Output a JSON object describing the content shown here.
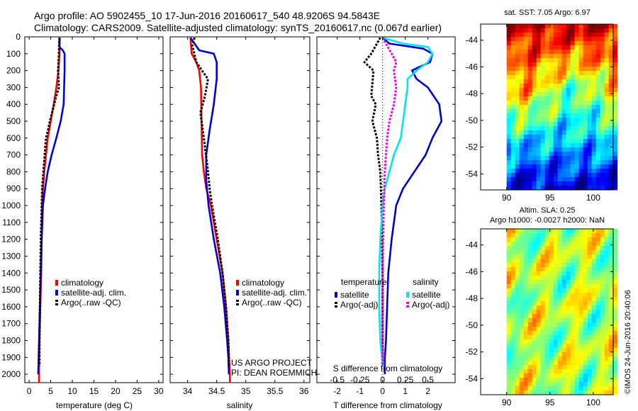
{
  "header": {
    "line1": "Argo profile: AO 5902455_10 17-Jun-2016 20160617_540 48.9206S 94.5843E",
    "line2": "Climatology: CARS2009. Satellite-adjusted climatology: synTS_20160617.nc (0.067d earlier)"
  },
  "sst_title": "sat. SST: 7.05 Argo: 6.97",
  "sla_title_1": "Altim. SLA: 0.25",
  "sla_title_2": "Argo h1000: -0.0027 h2000: NaN",
  "credit": "©IMOS 24-Jun-2016 20:40:06",
  "project_line1": "US ARGO PROJECT",
  "project_line2": "PI: DEAN ROEMMICH",
  "colors": {
    "climatology": "#ff0000",
    "satellite": "#0000dd",
    "argo": "#000000",
    "t_satellite": "#0000cc",
    "s_satellite": "#00e5ee",
    "s_argo": "#ee00ee"
  },
  "depth_ticks": [
    0,
    100,
    200,
    300,
    400,
    500,
    600,
    700,
    800,
    900,
    1000,
    1100,
    1200,
    1300,
    1400,
    1500,
    1600,
    1700,
    1800,
    1900,
    2000
  ],
  "chart_data": [
    {
      "type": "line",
      "id": "temperature",
      "xlabel": "temperature (deg C)",
      "ylabel": "",
      "xlim": [
        -1,
        31
      ],
      "ylim": [
        2050,
        0
      ],
      "xticks": [
        0,
        5,
        10,
        15,
        20,
        25,
        30
      ],
      "legend": [
        "climatology",
        "satellite-adj. clim.",
        "Argo(..raw -QC)"
      ],
      "legend_placement": "lower-center",
      "series": [
        {
          "name": "climatology",
          "color": "#ff0000",
          "style": "solid",
          "x": [
            7.1,
            7.0,
            6.8,
            6.3,
            5.7,
            5.0,
            4.3,
            3.9,
            3.5,
            3.2,
            3.0,
            2.9,
            2.8,
            2.7,
            2.6,
            2.5,
            2.4,
            2.3,
            2.3
          ],
          "y": [
            5,
            100,
            200,
            300,
            400,
            500,
            600,
            700,
            800,
            900,
            1000,
            1200,
            1400,
            1500,
            1600,
            1700,
            1800,
            1900,
            2050
          ]
        },
        {
          "name": "satellite-adj. clim.",
          "color": "#0000dd",
          "style": "solid",
          "x": [
            7.0,
            7.0,
            7.8,
            8.2,
            8.2,
            8.0,
            7.3,
            6.3,
            5.2,
            4.3,
            3.7,
            3.2,
            2.9,
            2.7,
            2.5,
            2.3,
            2.2,
            2.1
          ],
          "y": [
            5,
            60,
            80,
            100,
            200,
            400,
            500,
            600,
            700,
            800,
            900,
            1000,
            1200,
            1400,
            1600,
            1800,
            1900,
            2000
          ]
        },
        {
          "name": "Argo(..raw -QC)",
          "color": "#000000",
          "style": "dashed",
          "x": [
            7.0,
            6.9,
            6.7,
            6.9,
            6.3,
            5.8,
            5.3,
            4.8,
            4.4,
            3.9,
            3.6,
            3.3,
            3.0,
            2.9,
            2.7,
            2.6,
            2.5,
            2.4,
            2.4
          ],
          "y": [
            5,
            100,
            200,
            300,
            350,
            400,
            450,
            500,
            550,
            600,
            700,
            800,
            900,
            1000,
            1200,
            1400,
            1600,
            1800,
            1950
          ]
        }
      ]
    },
    {
      "type": "line",
      "id": "salinity",
      "xlabel": "salinity",
      "ylabel": "",
      "xlim": [
        33.7,
        36.1
      ],
      "ylim": [
        2050,
        0
      ],
      "xticks": [
        34,
        34.5,
        35,
        35.5,
        36
      ],
      "legend": [
        "climatology",
        "satellite-adj. clim.",
        "Argo(..raw -QC)"
      ],
      "legend_placement": "lower-center",
      "series": [
        {
          "name": "climatology",
          "color": "#ff0000",
          "style": "solid",
          "x": [
            34.05,
            34.07,
            34.15,
            34.2,
            34.23,
            34.24,
            34.25,
            34.28,
            34.32,
            34.4,
            34.5,
            34.6,
            34.66,
            34.7,
            34.72,
            34.73
          ],
          "y": [
            5,
            100,
            150,
            200,
            300,
            500,
            700,
            800,
            900,
            1000,
            1200,
            1400,
            1600,
            1800,
            1950,
            2050
          ]
        },
        {
          "name": "satellite-adj. clim.",
          "color": "#0000dd",
          "style": "solid",
          "x": [
            34.05,
            34.2,
            34.45,
            34.5,
            34.5,
            34.45,
            34.38,
            34.32,
            34.32,
            34.36,
            34.45,
            34.56,
            34.63,
            34.68,
            34.7,
            34.71
          ],
          "y": [
            5,
            80,
            100,
            150,
            250,
            400,
            550,
            700,
            850,
            1000,
            1200,
            1400,
            1600,
            1800,
            1900,
            2000
          ]
        },
        {
          "name": "Argo(..raw -QC)",
          "color": "#000000",
          "style": "dashed",
          "x": [
            34.12,
            34.08,
            34.15,
            34.25,
            34.35,
            34.3,
            34.22,
            34.28,
            34.35,
            34.38,
            34.42,
            34.52,
            34.6,
            34.66,
            34.7,
            34.71
          ],
          "y": [
            5,
            50,
            150,
            200,
            250,
            350,
            450,
            600,
            800,
            900,
            1000,
            1200,
            1400,
            1600,
            1800,
            1950
          ]
        }
      ]
    },
    {
      "type": "line",
      "id": "differences",
      "xlabel": "T difference from climatology",
      "xlabel2": "S difference from climatology",
      "ylabel": "",
      "xlim": [
        -2.9,
        3.2
      ],
      "ylim": [
        2050,
        0
      ],
      "xticks": [
        -2,
        -1,
        0,
        1,
        2
      ],
      "s_xticks": [
        -0.5,
        -0.25,
        0,
        0.25,
        0.5
      ],
      "s_xticks_pos": [
        -2,
        -1,
        0,
        1,
        2
      ],
      "legend_headers": [
        "temperature",
        "salinity"
      ],
      "legend": [
        "satellite",
        "Argo(-adj)",
        "satellite",
        "Argo(-adj)"
      ],
      "legend_placement": "lower-center",
      "series": [
        {
          "name": "T satellite",
          "color": "#0000cc",
          "style": "solid",
          "x": [
            0.0,
            0.3,
            1.8,
            2.2,
            2.1,
            1.6,
            1.3,
            1.5,
            2.0,
            2.5,
            2.6,
            2.2,
            1.9,
            1.4,
            0.9,
            0.6,
            0.4,
            0.25,
            0.2,
            0.15,
            0.1,
            0.1
          ],
          "y": [
            5,
            40,
            70,
            100,
            150,
            180,
            200,
            250,
            300,
            400,
            500,
            600,
            700,
            800,
            900,
            1000,
            1200,
            1400,
            1600,
            1800,
            1900,
            2000
          ]
        },
        {
          "name": "T Argo(-adj)",
          "color": "#000000",
          "style": "dashed",
          "x": [
            -0.1,
            -0.5,
            -0.8,
            -0.4,
            -0.5,
            -0.3,
            -0.45,
            -0.25,
            -0.2,
            -0.1,
            -0.05,
            0.0,
            0.0,
            0.0
          ],
          "y": [
            5,
            100,
            150,
            200,
            350,
            400,
            500,
            600,
            700,
            800,
            1000,
            1400,
            1800,
            1950
          ]
        },
        {
          "name": "S satellite",
          "color": "#00e5ee",
          "style": "solid",
          "x": [
            0.0,
            0.9,
            2.0,
            2.2,
            2.0,
            1.5,
            1.1,
            1.1,
            1.0,
            0.9,
            0.8,
            0.5,
            0.3,
            0.1,
            0.0,
            -0.1,
            -0.15,
            -0.15,
            -0.1,
            0.0
          ],
          "y": [
            5,
            40,
            60,
            100,
            150,
            200,
            250,
            300,
            400,
            500,
            600,
            700,
            800,
            900,
            1000,
            1200,
            1400,
            1600,
            1800,
            1950
          ]
        },
        {
          "name": "S Argo(-adj)",
          "color": "#ee00ee",
          "style": "dashed",
          "x": [
            0.0,
            0.4,
            0.6,
            0.5,
            0.6,
            0.5,
            0.3,
            0.2,
            0.15,
            0.1,
            0.05,
            0.0,
            0.0,
            0.0
          ],
          "y": [
            5,
            100,
            150,
            200,
            300,
            400,
            500,
            600,
            700,
            800,
            1000,
            1400,
            1800,
            1950
          ]
        }
      ]
    },
    {
      "type": "heatmap",
      "id": "sat_sst",
      "title": "sat. SST: 7.05 Argo: 6.97",
      "xlim": [
        87,
        102.3
      ],
      "ylim": [
        -55.2,
        -42.8
      ],
      "xticks": [
        90,
        95,
        100
      ],
      "yticks": [
        -44,
        -46,
        -48,
        -50,
        -52,
        -54
      ],
      "data_extent_x": [
        90,
        102.3
      ],
      "colormap": "jet",
      "pattern": "warm (red) in north, green mid-latitudes, blue in south"
    },
    {
      "type": "heatmap",
      "id": "sat_sla",
      "title": "Altim. SLA: 0.25",
      "xlim": [
        87,
        102.3
      ],
      "ylim": [
        -55.2,
        -42.8
      ],
      "xticks": [
        90,
        95,
        100
      ],
      "yticks": [
        -44,
        -46,
        -48,
        -50,
        -52,
        -54
      ],
      "data_extent_x": [
        90,
        102.3
      ],
      "colormap": "jet",
      "pattern": "mostly green with yellow/orange blobs"
    }
  ]
}
